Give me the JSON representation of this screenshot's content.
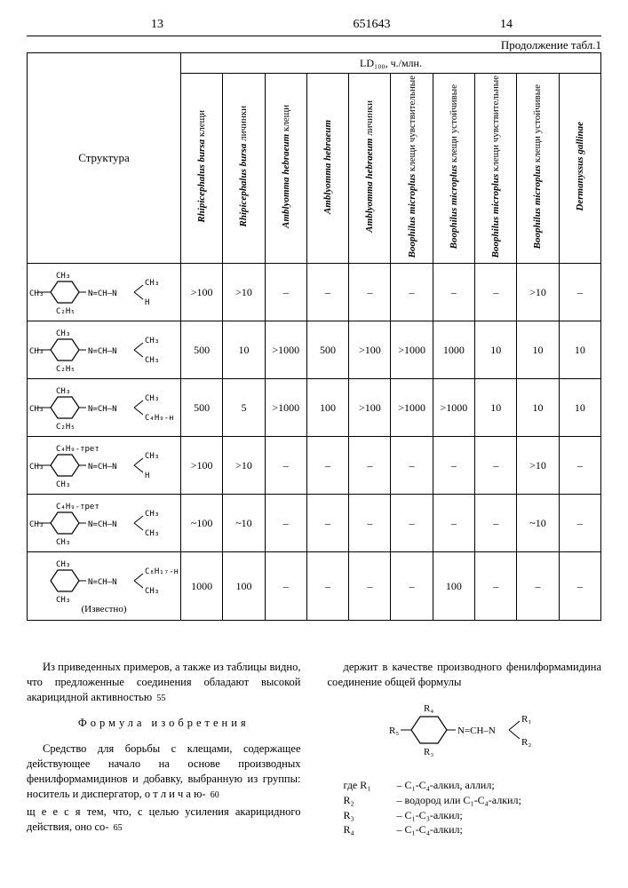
{
  "page": {
    "left_num": "13",
    "center_num": "651643",
    "right_num": "14",
    "cont_label": "Продолжение табл.1"
  },
  "table": {
    "struct_header": "Структура",
    "ld_header": "LD₁₀₀, ч./млн.",
    "columns": [
      {
        "sp": "Rhipicephalus bursa",
        "note": "клещи"
      },
      {
        "sp": "Rhipicephalus bursa",
        "note": "личинки"
      },
      {
        "sp": "Amblyomma hebraeum",
        "note": "клещи"
      },
      {
        "sp": "Amblyomma hebraeum",
        "note": ""
      },
      {
        "sp": "Amblyomma hebraeum",
        "note": "личинки"
      },
      {
        "sp": "Boophilus microplus",
        "note": "клещи чувствительные"
      },
      {
        "sp": "Boophilus microplus",
        "note": "клещи устойчивые"
      },
      {
        "sp": "Boophilus microplus",
        "note": "клещи чувствительные"
      },
      {
        "sp": "Boophilus microplus",
        "note": "клещи устойчивые"
      },
      {
        "sp": "Dermanyssus gallinae",
        "note": ""
      }
    ],
    "rows": [
      {
        "struct": {
          "top": "CH₃",
          "p": "CH₃",
          "bot": "C₂H₅",
          "r1": "CH₃",
          "r2": "H"
        },
        "v": [
          ">100",
          ">10",
          "–",
          "–",
          "–",
          "–",
          "–",
          "–",
          ">10",
          "–"
        ]
      },
      {
        "struct": {
          "top": "CH₃",
          "p": "CH₃",
          "bot": "C₂H₅",
          "r1": "CH₃",
          "r2": "CH₃"
        },
        "v": [
          "500",
          "10",
          ">1000",
          "500",
          ">100",
          ">1000",
          "1000",
          "10",
          "10",
          "10"
        ]
      },
      {
        "struct": {
          "top": "CH₃",
          "p": "CH₃",
          "bot": "C₂H₅",
          "r1": "CH₃",
          "r2": "C₄H₉-н"
        },
        "v": [
          "500",
          "5",
          ">1000",
          "100",
          ">100",
          ">1000",
          ">1000",
          "10",
          "10",
          "10"
        ]
      },
      {
        "struct": {
          "top": "C₄H₉-трет",
          "p": "CH₃",
          "bot": "CH₃",
          "r1": "CH₃",
          "r2": "H"
        },
        "v": [
          ">100",
          ">10",
          "–",
          "–",
          "–",
          "–",
          "–",
          "–",
          ">10",
          "–"
        ]
      },
      {
        "struct": {
          "top": "C₄H₉-трет",
          "p": "CH₃",
          "bot": "CH₃",
          "r1": "CH₃",
          "r2": "CH₃"
        },
        "v": [
          "~100",
          "~10",
          "–",
          "–",
          "–",
          "–",
          "–",
          "–",
          "~10",
          "–"
        ]
      },
      {
        "struct": {
          "top": "CH₃",
          "p": "",
          "bot": "CH₃",
          "r1": "C₈H₁₇-н",
          "r2": "CH₃",
          "note": "(Известно)"
        },
        "v": [
          "1000",
          "100",
          "–",
          "–",
          "–",
          "–",
          "100",
          "–",
          "–",
          "–"
        ]
      }
    ]
  },
  "text": {
    "p1": "Из приведенных примеров, а также из таблицы видно, что предложенные соединения обладают высокой акарицидной активностью",
    "formula_title": "Формула изобретения",
    "p2a": "Средство для борьбы с клещами, содержащее действующее начало на основе производных фенилформамидинов и добавку, выбранную из группы: носитель и диспергатор, о т л и ч а ю-",
    "p2b": "щ е е с я  тем, что, с целью усиления акарицидного действия, оно со-",
    "p3": "держит в качестве производного фенилформамидина соединение общей формулы",
    "where": [
      {
        "l": "где R₁",
        "r": "– C₁-C₄-алкил, аллил;"
      },
      {
        "l": "R₂",
        "r": "– водород или C₁-C₄-алкил;"
      },
      {
        "l": "R₃",
        "r": "– C₁-C₃-алкил;"
      },
      {
        "l": "R₄",
        "r": "– C₁-C₄-алкил;"
      }
    ],
    "ln55": "55",
    "ln60": "60",
    "ln65": "65"
  }
}
